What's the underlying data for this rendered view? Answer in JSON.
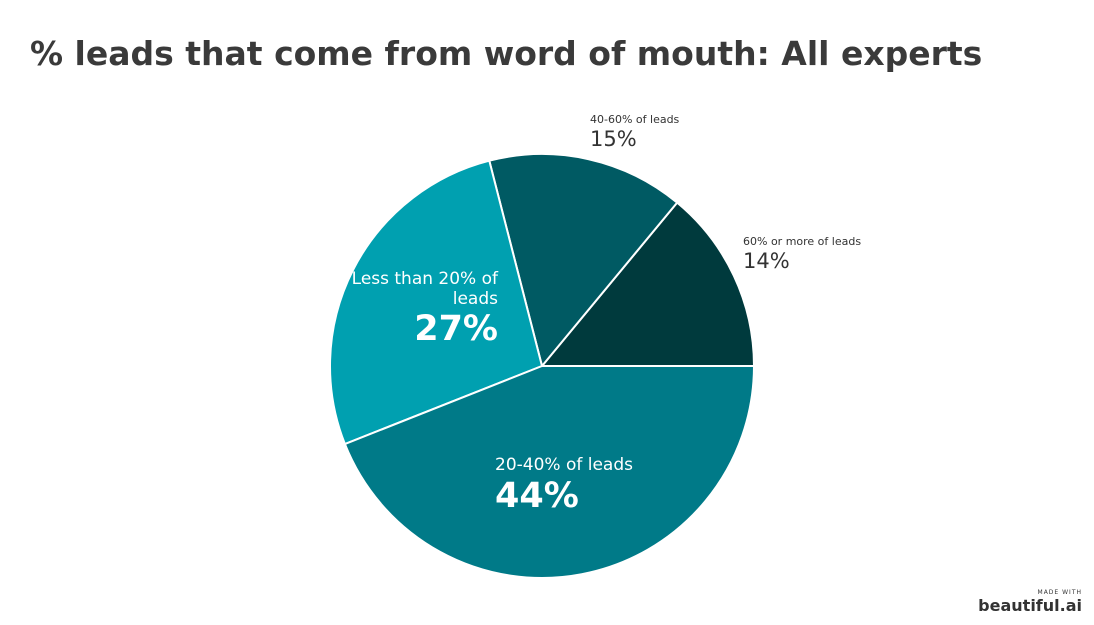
{
  "chart_data": {
    "type": "pie",
    "title": "% leads that come from word of mouth: All experts",
    "categories": [
      "60% or more of leads",
      "40-60% of leads",
      "Less than 20% of leads",
      "20-40% of leads"
    ],
    "values": [
      14,
      15,
      27,
      44
    ],
    "value_labels": [
      "14%",
      "15%",
      "27%",
      "44%"
    ],
    "colors": [
      "#003a3d",
      "#005a63",
      "#00a0b0",
      "#007a88"
    ]
  },
  "watermark": {
    "caption": "MADE WITH",
    "brand": "beautiful.ai"
  }
}
